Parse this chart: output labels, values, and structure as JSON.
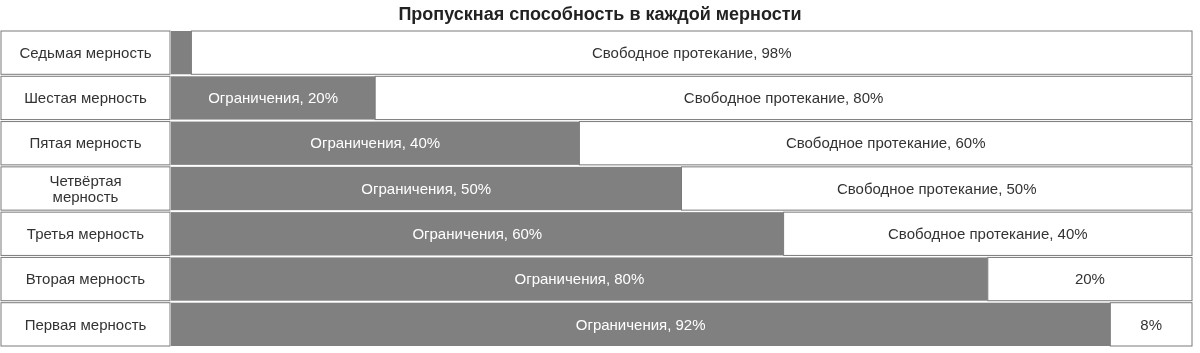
{
  "chart_data": {
    "type": "bar",
    "orientation": "horizontal",
    "stacked": true,
    "title": "Пропускная способность в каждой мерности",
    "categories": [
      "Седьмая мерность",
      "Шестая мерность",
      "Пятая мерность",
      "Четвёртая мерность",
      "Третья мерность",
      "Вторая мерность",
      "Первая мерность"
    ],
    "series": [
      {
        "color": "#808080",
        "values": [
          2,
          20,
          40,
          50,
          60,
          80,
          92
        ],
        "value_labels": [
          null,
          "Ограничения, 20%",
          "Ограничения, 40%",
          "Ограничения, 50%",
          "Ограничения, 60%",
          "Ограничения, 80%",
          "Ограничения, 92%"
        ]
      },
      {
        "color": "#ffffff",
        "values": [
          98,
          80,
          60,
          50,
          40,
          20,
          8
        ],
        "value_labels": [
          "Свободное протекание, 98%",
          "Свободное протекание, 80%",
          "Свободное протекание, 60%",
          "Свободное протекание, 50%",
          "Свободное протекание, 40%",
          "20%",
          "8%"
        ]
      }
    ]
  }
}
